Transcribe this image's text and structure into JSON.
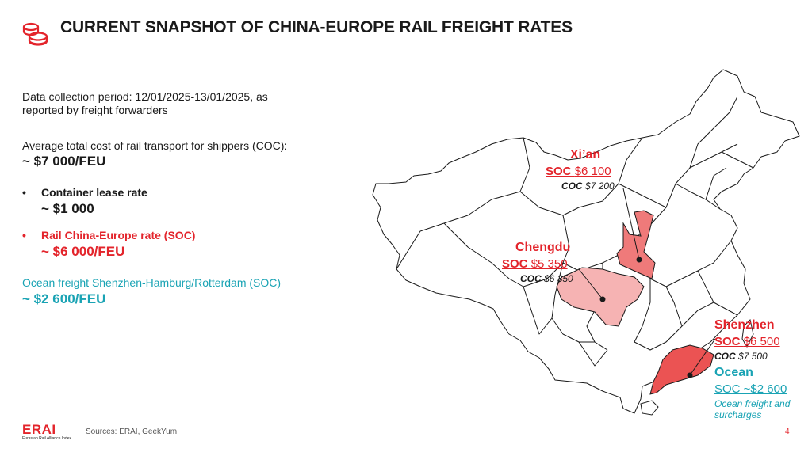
{
  "title": "CURRENT SNAPSHOT OF CHINA-EUROPE RAIL FREIGHT RATES",
  "intro": {
    "line1": "Data collection period: 12/01/2025-13/01/2025,  as",
    "line2": "reported by freight forwarders"
  },
  "avg": {
    "label": "Average total cost of rail transport for shippers (COC):",
    "value": "~ $7 000/FEU"
  },
  "bullets": [
    {
      "label": "Container lease rate",
      "value": "~ $1 000"
    },
    {
      "label": "Rail China-Europe rate (SOC)",
      "value": "~ $6 000/FEU"
    }
  ],
  "ocean": {
    "label": "Ocean freight Shenzhen-Hamburg/Rotterdam (SOC)",
    "value": "~ $2 600/FEU"
  },
  "cities": {
    "xian": {
      "name": "Xi’an",
      "soc_prefix": "SOC",
      "soc_value": "$6 100",
      "coc_prefix": "COC",
      "coc_value": "$7 200"
    },
    "chengdu": {
      "name": "Chengdu",
      "soc_prefix": "SOC",
      "soc_value": "$5 350",
      "coc_prefix": "COC",
      "coc_value": "$6 350"
    },
    "shenzhen": {
      "name": "Shenzhen",
      "soc_prefix": "SOC",
      "soc_value": "$6 500",
      "coc_prefix": "COC",
      "coc_value": "$7 500"
    }
  },
  "ocean_label": {
    "name": "Ocean",
    "soc": "SOC ~$2 600",
    "note1": "Ocean freight and",
    "note2": "surcharges"
  },
  "footer": {
    "logo": "ERAI",
    "logo_sub": "Eurasian Rail Alliance Index",
    "sources_prefix": "Sources:",
    "source1": "ERAI",
    "source2": ", GeekYum",
    "page": "4"
  },
  "colors": {
    "red": "#e3242b",
    "teal": "#19a3b4",
    "xian_fill": "#ef7a7a",
    "chengdu_fill": "#f6b3b3",
    "shenzhen_fill": "#eb5353"
  }
}
